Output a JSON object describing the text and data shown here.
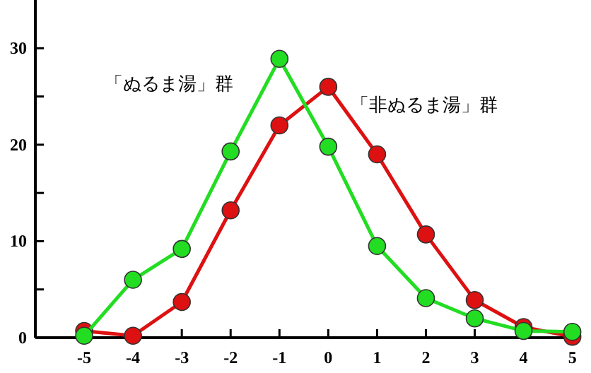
{
  "chart_data": {
    "type": "line",
    "x": [
      -5,
      -4,
      -3,
      -2,
      -1,
      0,
      1,
      2,
      3,
      4,
      5
    ],
    "xlim": [
      -6,
      5.15
    ],
    "xticks": [
      -5,
      -4,
      -3,
      -2,
      -1,
      0,
      1,
      2,
      3,
      4,
      5
    ],
    "ylim": [
      0,
      35
    ],
    "yticks": [
      0,
      {
        "value": 5,
        "label": null
      },
      10,
      {
        "value": 15,
        "label": null
      },
      20,
      {
        "value": 25,
        "label": null
      },
      30
    ],
    "marker": "circle",
    "line_style": "solid",
    "grid": false,
    "series": [
      {
        "name": "「非ぬるま湯」群",
        "color": "#dd1111",
        "values": [
          0.7,
          0.2,
          3.7,
          13.2,
          22,
          26,
          19,
          10.7,
          3.9,
          1.1,
          0.1
        ]
      },
      {
        "name": "「ぬるま湯」群",
        "color": "#22dd22",
        "values": [
          0.2,
          6,
          9.2,
          19.3,
          28.9,
          19.8,
          9.5,
          4.1,
          2,
          0.7,
          0.6
        ]
      }
    ]
  }
}
